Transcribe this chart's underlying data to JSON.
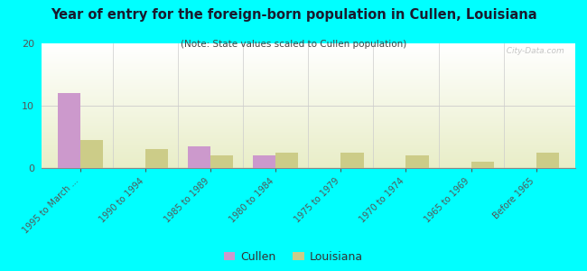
{
  "categories": [
    "1995 to March ...",
    "1990 to 1994",
    "1985 to 1989",
    "1980 to 1984",
    "1975 to 1979",
    "1970 to 1974",
    "1965 to 1969",
    "Before 1965"
  ],
  "cullen_values": [
    12,
    0,
    3.5,
    2,
    0,
    0,
    0,
    0
  ],
  "louisiana_values": [
    4.5,
    3,
    2,
    2.5,
    2.5,
    2,
    1,
    2.5
  ],
  "cullen_color": "#cc99cc",
  "louisiana_color": "#cccc88",
  "title": "Year of entry for the foreign-born population in Cullen, Louisiana",
  "subtitle": "(Note: State values scaled to Cullen population)",
  "ylim": [
    0,
    20
  ],
  "yticks": [
    0,
    10,
    20
  ],
  "background_color": "#00ffff",
  "watermark": "  City-Data.com",
  "legend_labels": [
    "Cullen",
    "Louisiana"
  ],
  "bar_width": 0.35
}
